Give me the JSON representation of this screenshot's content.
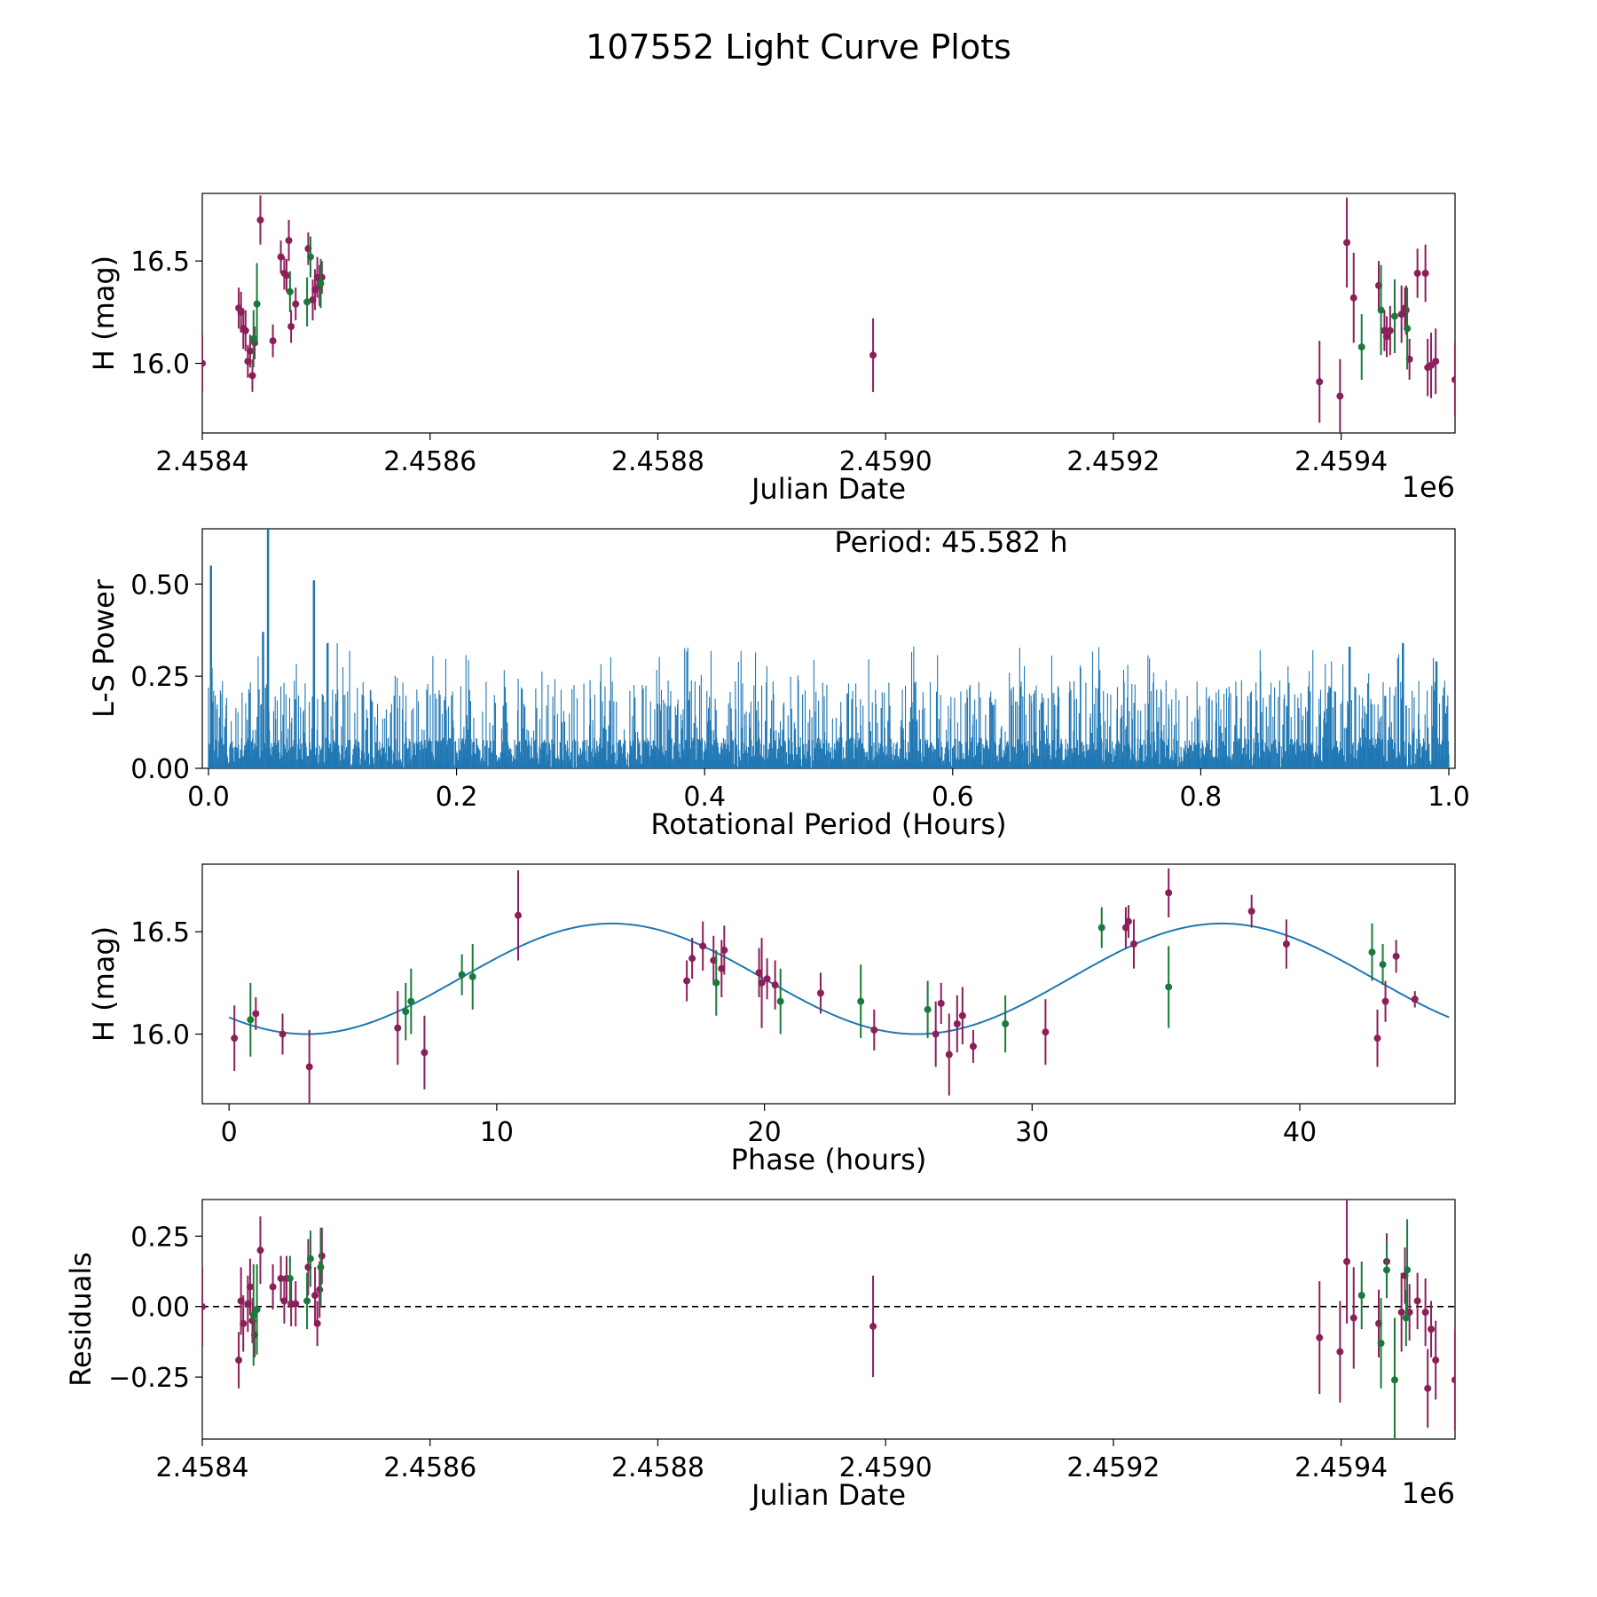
{
  "figure": {
    "title": "107552 Light Curve Plots",
    "colors": {
      "purple": "#8c1f5a",
      "green": "#1b7a3a",
      "line": "#1f77b4",
      "axis": "#000000"
    }
  },
  "chart_data": [
    {
      "type": "scatter",
      "name": "light-curve",
      "title": "",
      "xlabel": "Julian Date",
      "ylabel": "H (mag)",
      "offset_label": "1e6",
      "xlim": [
        2.4584,
        2.4595
      ],
      "ylim": [
        15.66,
        16.83
      ],
      "xticks": [
        2.4584,
        2.4586,
        2.4588,
        2.459,
        2.4592,
        2.4594
      ],
      "xtick_labels": [
        "2.4584",
        "2.4586",
        "2.4588",
        "2.4590",
        "2.4592",
        "2.4594"
      ],
      "yticks": [
        16.0,
        16.5
      ],
      "ytick_labels": [
        "16.0",
        "16.5"
      ],
      "series": [
        {
          "name": "purple",
          "color": "#8c1f5a",
          "points": [
            [
              2.4584,
              16.0,
              0.14
            ],
            [
              2.458432,
              16.27,
              0.1
            ],
            [
              2.458434,
              16.25,
              0.1
            ],
            [
              2.458436,
              16.17,
              0.1
            ],
            [
              2.458438,
              16.16,
              0.1
            ],
            [
              2.45844,
              16.01,
              0.08
            ],
            [
              2.458442,
              16.06,
              0.08
            ],
            [
              2.458444,
              15.94,
              0.08
            ],
            [
              2.458446,
              16.1,
              0.08
            ],
            [
              2.458451,
              16.7,
              0.12
            ],
            [
              2.458462,
              16.11,
              0.08
            ],
            [
              2.458469,
              16.52,
              0.08
            ],
            [
              2.458472,
              16.44,
              0.08
            ],
            [
              2.458474,
              16.43,
              0.08
            ],
            [
              2.458476,
              16.6,
              0.1
            ],
            [
              2.458478,
              16.18,
              0.08
            ],
            [
              2.458482,
              16.29,
              0.08
            ],
            [
              2.458493,
              16.56,
              0.08
            ],
            [
              2.458497,
              16.31,
              0.1
            ],
            [
              2.458499,
              16.36,
              0.1
            ],
            [
              2.458501,
              16.42,
              0.1
            ],
            [
              2.458503,
              16.38,
              0.1
            ],
            [
              2.458505,
              16.42,
              0.08
            ],
            [
              2.458989,
              16.04,
              0.18
            ],
            [
              2.459381,
              15.91,
              0.2
            ],
            [
              2.459399,
              15.84,
              0.18
            ],
            [
              2.459405,
              16.59,
              0.22
            ],
            [
              2.459411,
              16.32,
              0.22
            ],
            [
              2.459433,
              16.38,
              0.12
            ],
            [
              2.459438,
              16.16,
              0.1
            ],
            [
              2.45944,
              16.13,
              0.1
            ],
            [
              2.459443,
              16.16,
              0.12
            ],
            [
              2.459453,
              16.24,
              0.14
            ],
            [
              2.459456,
              16.27,
              0.1
            ],
            [
              2.459457,
              16.26,
              0.12
            ],
            [
              2.45946,
              16.02,
              0.1
            ],
            [
              2.459467,
              16.44,
              0.12
            ],
            [
              2.459474,
              16.44,
              0.14
            ],
            [
              2.459476,
              15.98,
              0.14
            ],
            [
              2.459479,
              15.99,
              0.16
            ],
            [
              2.459483,
              16.01,
              0.16
            ],
            [
              2.4595,
              15.92,
              0.18
            ]
          ]
        },
        {
          "name": "green",
          "color": "#1b7a3a",
          "points": [
            [
              2.458445,
              16.12,
              0.14
            ],
            [
              2.458448,
              16.29,
              0.2
            ],
            [
              2.458477,
              16.35,
              0.1
            ],
            [
              2.458492,
              16.3,
              0.12
            ],
            [
              2.458495,
              16.52,
              0.1
            ],
            [
              2.458504,
              16.39,
              0.12
            ],
            [
              2.459418,
              16.08,
              0.16
            ],
            [
              2.459435,
              16.26,
              0.22
            ],
            [
              2.459447,
              16.23,
              0.18
            ],
            [
              2.459458,
              16.17,
              0.2
            ]
          ]
        }
      ]
    },
    {
      "type": "line",
      "name": "periodogram",
      "xlabel": "Rotational Period (Hours)",
      "ylabel": "L-S Power",
      "annotation": "Period: 45.582 h",
      "xlim": [
        -0.005,
        1.005
      ],
      "ylim": [
        0.0,
        0.65
      ],
      "xticks": [
        0.0,
        0.2,
        0.4,
        0.6,
        0.8,
        1.0
      ],
      "xtick_labels": [
        "0.0",
        "0.2",
        "0.4",
        "0.6",
        "0.8",
        "1.0"
      ],
      "yticks": [
        0.0,
        0.25,
        0.5
      ],
      "ytick_labels": [
        "0.00",
        "0.25",
        "0.50"
      ],
      "peaks": [
        [
          0.002,
          0.55
        ],
        [
          0.044,
          0.37
        ],
        [
          0.048,
          0.65
        ],
        [
          0.085,
          0.51
        ],
        [
          0.096,
          0.34
        ],
        [
          0.92,
          0.33
        ],
        [
          0.963,
          0.34
        ],
        [
          0.99,
          0.29
        ]
      ],
      "noise_model": {
        "points": 2400,
        "typical_peak": 0.12,
        "max_peak": 0.34,
        "seed": 107552
      }
    },
    {
      "type": "scatter",
      "name": "phased-curve",
      "xlabel": "Phase (hours)",
      "ylabel": "H (mag)",
      "xlim": [
        -1.0,
        45.8
      ],
      "ylim": [
        15.66,
        16.83
      ],
      "xticks": [
        0,
        10,
        20,
        30,
        40
      ],
      "xtick_labels": [
        "0",
        "10",
        "20",
        "30",
        "40"
      ],
      "yticks": [
        16.0,
        16.5
      ],
      "ytick_labels": [
        "16.0",
        "16.5"
      ],
      "model": {
        "period": 22.791,
        "center": 16.27,
        "amplitude": 0.27,
        "phase_shift": 0.0,
        "x_range": [
          0.0,
          45.58
        ]
      },
      "series": [
        {
          "name": "purple",
          "color": "#8c1f5a",
          "points": [
            [
              0.2,
              15.98,
              0.16
            ],
            [
              1.0,
              16.1,
              0.08
            ],
            [
              2.0,
              16.0,
              0.1
            ],
            [
              3.0,
              15.84,
              0.18
            ],
            [
              6.3,
              16.03,
              0.18
            ],
            [
              7.3,
              15.91,
              0.18
            ],
            [
              10.8,
              16.58,
              0.22
            ],
            [
              17.1,
              16.26,
              0.1
            ],
            [
              17.3,
              16.37,
              0.1
            ],
            [
              17.7,
              16.43,
              0.12
            ],
            [
              18.1,
              16.36,
              0.12
            ],
            [
              18.4,
              16.32,
              0.14
            ],
            [
              18.5,
              16.41,
              0.12
            ],
            [
              19.8,
              16.3,
              0.12
            ],
            [
              19.9,
              16.25,
              0.22
            ],
            [
              20.1,
              16.27,
              0.1
            ],
            [
              20.4,
              16.24,
              0.12
            ],
            [
              22.1,
              16.2,
              0.1
            ],
            [
              24.1,
              16.02,
              0.1
            ],
            [
              26.4,
              16.0,
              0.16
            ],
            [
              26.6,
              16.15,
              0.1
            ],
            [
              26.9,
              15.9,
              0.2
            ],
            [
              27.2,
              16.05,
              0.14
            ],
            [
              27.4,
              16.09,
              0.14
            ],
            [
              27.8,
              15.94,
              0.08
            ],
            [
              30.5,
              16.01,
              0.16
            ],
            [
              33.5,
              16.52,
              0.1
            ],
            [
              33.6,
              16.55,
              0.08
            ],
            [
              33.8,
              16.44,
              0.12
            ],
            [
              35.1,
              16.69,
              0.12
            ],
            [
              38.2,
              16.6,
              0.08
            ],
            [
              39.5,
              16.44,
              0.12
            ],
            [
              42.9,
              15.98,
              0.14
            ],
            [
              43.2,
              16.16,
              0.1
            ],
            [
              43.6,
              16.38,
              0.08
            ],
            [
              44.3,
              16.17,
              0.04
            ]
          ]
        },
        {
          "name": "green",
          "color": "#1b7a3a",
          "points": [
            [
              0.8,
              16.07,
              0.18
            ],
            [
              6.6,
              16.11,
              0.14
            ],
            [
              6.8,
              16.16,
              0.16
            ],
            [
              8.7,
              16.29,
              0.1
            ],
            [
              9.1,
              16.28,
              0.16
            ],
            [
              18.2,
              16.25,
              0.16
            ],
            [
              20.6,
              16.16,
              0.16
            ],
            [
              23.6,
              16.16,
              0.18
            ],
            [
              26.1,
              16.12,
              0.14
            ],
            [
              29.0,
              16.05,
              0.14
            ],
            [
              32.6,
              16.52,
              0.1
            ],
            [
              35.1,
              16.23,
              0.2
            ],
            [
              42.7,
              16.4,
              0.14
            ],
            [
              43.1,
              16.34,
              0.1
            ]
          ]
        }
      ]
    },
    {
      "type": "scatter",
      "name": "residuals",
      "xlabel": "Julian Date",
      "ylabel": "Residuals",
      "offset_label": "1e6",
      "xlim": [
        2.4584,
        2.4595
      ],
      "ylim": [
        -0.47,
        0.38
      ],
      "xticks": [
        2.4584,
        2.4586,
        2.4588,
        2.459,
        2.4592,
        2.4594
      ],
      "xtick_labels": [
        "2.4584",
        "2.4586",
        "2.4588",
        "2.4590",
        "2.4592",
        "2.4594"
      ],
      "yticks": [
        -0.25,
        0.0,
        0.25
      ],
      "ytick_labels": [
        "−0.25",
        "0.00",
        "0.25"
      ],
      "reference_line": 0.0,
      "series": [
        {
          "name": "purple",
          "color": "#8c1f5a",
          "points": [
            [
              2.4584,
              0.0,
              0.14
            ],
            [
              2.458432,
              -0.19,
              0.1
            ],
            [
              2.458434,
              0.02,
              0.12
            ],
            [
              2.458436,
              -0.06,
              0.1
            ],
            [
              2.45844,
              0.01,
              0.1
            ],
            [
              2.458442,
              0.07,
              0.1
            ],
            [
              2.458444,
              -0.05,
              0.08
            ],
            [
              2.458446,
              -0.1,
              0.08
            ],
            [
              2.458451,
              0.2,
              0.12
            ],
            [
              2.458462,
              0.07,
              0.08
            ],
            [
              2.458469,
              0.1,
              0.08
            ],
            [
              2.458472,
              0.02,
              0.08
            ],
            [
              2.458474,
              0.1,
              0.08
            ],
            [
              2.458478,
              0.01,
              0.08
            ],
            [
              2.458482,
              0.01,
              0.08
            ],
            [
              2.458493,
              0.14,
              0.1
            ],
            [
              2.458499,
              0.04,
              0.1
            ],
            [
              2.458501,
              -0.06,
              0.08
            ],
            [
              2.458503,
              0.06,
              0.1
            ],
            [
              2.458505,
              0.18,
              0.1
            ],
            [
              2.458989,
              -0.07,
              0.18
            ],
            [
              2.459381,
              -0.11,
              0.2
            ],
            [
              2.459399,
              -0.16,
              0.18
            ],
            [
              2.459405,
              0.16,
              0.22
            ],
            [
              2.459411,
              -0.04,
              0.18
            ],
            [
              2.459433,
              -0.06,
              0.12
            ],
            [
              2.45944,
              0.16,
              0.1
            ],
            [
              2.459453,
              -0.02,
              0.14
            ],
            [
              2.459456,
              0.11,
              0.1
            ],
            [
              2.45946,
              -0.02,
              0.1
            ],
            [
              2.459467,
              0.02,
              0.1
            ],
            [
              2.459474,
              -0.02,
              0.12
            ],
            [
              2.459476,
              -0.29,
              0.14
            ],
            [
              2.459479,
              -0.08,
              0.1
            ],
            [
              2.459483,
              -0.19,
              0.14
            ],
            [
              2.4595,
              -0.26,
              0.18
            ]
          ]
        },
        {
          "name": "green",
          "color": "#1b7a3a",
          "points": [
            [
              2.458445,
              -0.03,
              0.18
            ],
            [
              2.458448,
              -0.01,
              0.16
            ],
            [
              2.458477,
              0.1,
              0.08
            ],
            [
              2.458492,
              0.02,
              0.1
            ],
            [
              2.458495,
              0.17,
              0.1
            ],
            [
              2.458504,
              0.14,
              0.14
            ],
            [
              2.459418,
              0.04,
              0.12
            ],
            [
              2.459435,
              -0.13,
              0.16
            ],
            [
              2.45944,
              0.13,
              0.1
            ],
            [
              2.459447,
              -0.26,
              0.22
            ],
            [
              2.459458,
              0.13,
              0.18
            ],
            [
              2.459457,
              -0.04,
              0.1
            ]
          ]
        }
      ]
    }
  ]
}
